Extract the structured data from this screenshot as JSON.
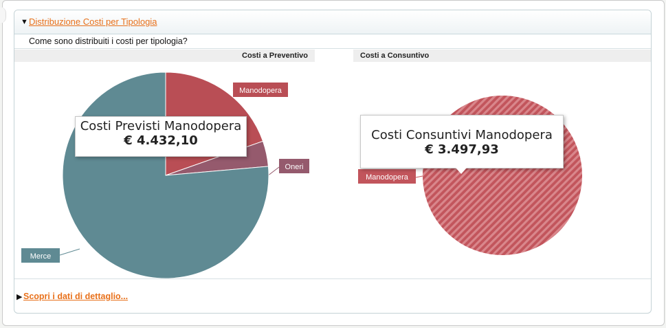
{
  "section": {
    "title": "Distribuzione Costi per Tipologia",
    "question": "Come sono distribuiti i costi per tipologia?",
    "detail_link": "Scopri i dati di dettaglio..."
  },
  "chart_data": [
    {
      "type": "pie",
      "title": "Costi a Preventivo",
      "slices": [
        {
          "label": "Manodopera",
          "value": 4432.1,
          "color": "#b94e55"
        },
        {
          "label": "Oneri",
          "value": 900,
          "color": "#955a6d"
        },
        {
          "label": "Merce",
          "value": 17250,
          "color": "#5f8a93"
        }
      ],
      "tooltip": {
        "title": "Costi Previsti Manodopera",
        "value": "€ 4.432,10"
      }
    },
    {
      "type": "pie",
      "title": "Costi a Consuntivo",
      "slices": [
        {
          "label": "Manodopera",
          "value": 3497.93,
          "color": "#c2555c",
          "pattern": "hatched"
        }
      ],
      "tooltip": {
        "title": "Costi Consuntivi Manodopera",
        "value": "€ 3.497,93"
      }
    }
  ]
}
